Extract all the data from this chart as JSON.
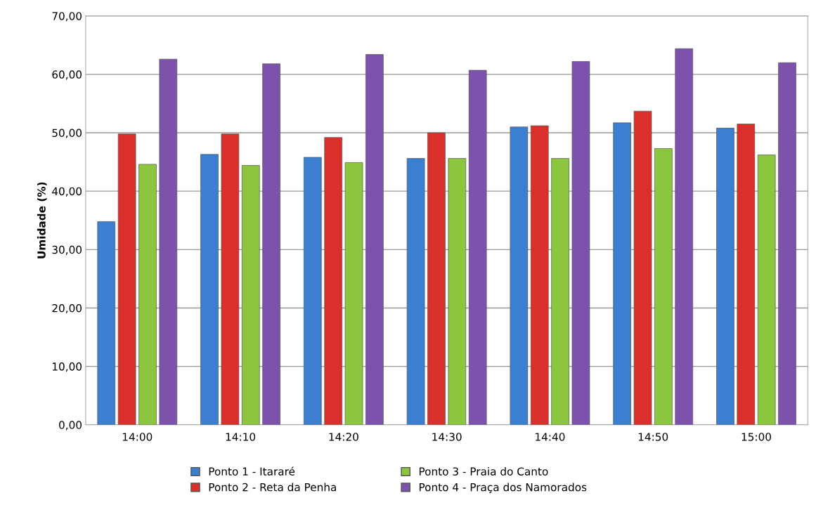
{
  "chart_data": {
    "type": "bar",
    "ylabel": "Umidade (%)",
    "categories": [
      "14:00",
      "14:10",
      "14:20",
      "14:30",
      "14:40",
      "14:50",
      "15:00"
    ],
    "series": [
      {
        "name": "Ponto 1 - Itararé",
        "color": "#3a7fd0",
        "values": [
          34.8,
          46.3,
          45.8,
          45.6,
          51.0,
          51.7,
          50.8
        ]
      },
      {
        "name": "Ponto 2 - Reta da Penha",
        "color": "#d9302b",
        "values": [
          49.8,
          49.8,
          49.2,
          50.0,
          51.2,
          53.7,
          51.5
        ]
      },
      {
        "name": "Ponto 3 - Praia do Canto",
        "color": "#8cc63e",
        "values": [
          44.6,
          44.4,
          44.9,
          45.6,
          45.6,
          47.3,
          46.2
        ]
      },
      {
        "name": "Ponto 4 - Praça dos Namorados",
        "color": "#7d52ad",
        "values": [
          62.6,
          61.8,
          63.4,
          60.7,
          62.2,
          64.4,
          62.0
        ]
      }
    ],
    "ylim": [
      0,
      70
    ],
    "yticks": [
      {
        "value": 0,
        "label": "0,00"
      },
      {
        "value": 10,
        "label": "10,00"
      },
      {
        "value": 20,
        "label": "20,00"
      },
      {
        "value": 30,
        "label": "30,00"
      },
      {
        "value": 40,
        "label": "40,00"
      },
      {
        "value": 50,
        "label": "50,00"
      },
      {
        "value": 60,
        "label": "60,00"
      },
      {
        "value": 70,
        "label": "70,00"
      }
    ],
    "grid": "y",
    "legend": "bottom"
  }
}
